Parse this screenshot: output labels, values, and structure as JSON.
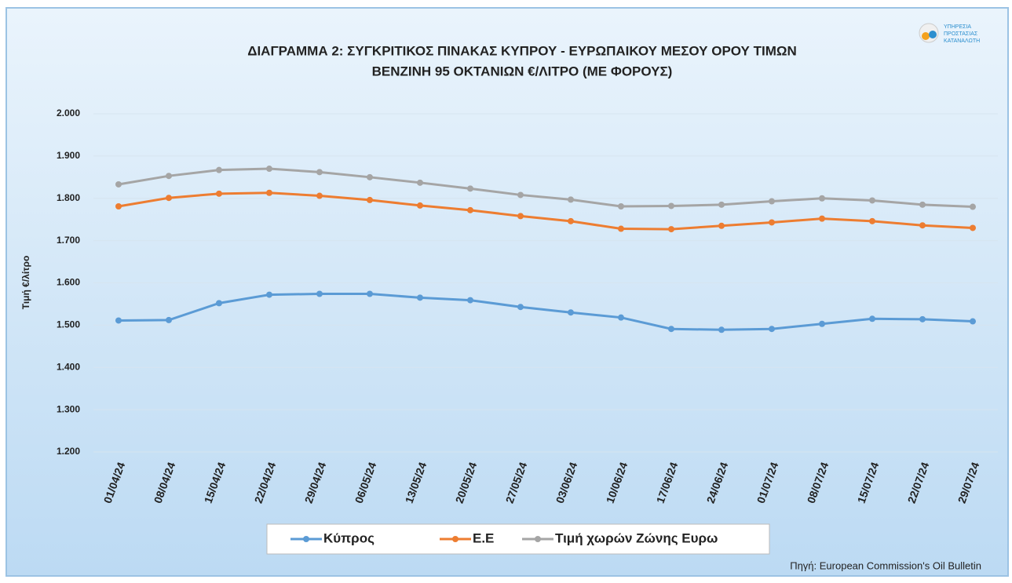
{
  "chart_data": {
    "type": "line",
    "title": [
      "ΔΙΑΓΡΑΜΜΑ 2: ΣΥΓΚΡΙΤΙΚΟΣ ΠΙΝΑΚΑΣ ΚΥΠΡΟΥ - ΕΥΡΩΠΑΙΚΟΥ ΜΕΣΟΥ ΟΡΟΥ ΤΙΜΩΝ",
      "ΒΕΝΖΙΝΗ 95 ΟΚΤΑΝΙΩΝ €/ΛΙΤΡΟ (ΜΕ ΦΟΡΟΥΣ)"
    ],
    "y_label": "Τιμή €/λίτρο",
    "source": "Πηγή: European Commission's Oil Bulletin",
    "logo": [
      "ΥΠΗΡΕΣΙΑ",
      "ΠΡΟΣΤΑΣΙΑΣ",
      "ΚΑΤΑΝΑΛΩΤΗ"
    ],
    "categories": [
      "01/04/24",
      "08/04/24",
      "15/04/24",
      "22/04/24",
      "29/04/24",
      "06/05/24",
      "13/05/24",
      "20/05/24",
      "27/05/24",
      "03/06/24",
      "10/06/24",
      "17/06/24",
      "24/06/24",
      "01/07/24",
      "08/07/24",
      "15/07/24",
      "22/07/24",
      "29/07/24"
    ],
    "series": [
      {
        "name": "Κύπρος",
        "color": "#5b9bd5",
        "values": [
          1.511,
          1.512,
          1.552,
          1.572,
          1.574,
          1.574,
          1.565,
          1.559,
          1.543,
          1.53,
          1.518,
          1.491,
          1.489,
          1.491,
          1.503,
          1.515,
          1.514,
          1.509
        ]
      },
      {
        "name": "Ε.Ε",
        "color": "#ed7d31",
        "values": [
          1.781,
          1.801,
          1.811,
          1.813,
          1.806,
          1.796,
          1.783,
          1.772,
          1.758,
          1.746,
          1.728,
          1.727,
          1.735,
          1.743,
          1.752,
          1.746,
          1.736,
          1.73
        ]
      },
      {
        "name": "Τιμή χωρών Ζώνης Ευρω",
        "color": "#a5a5a5",
        "values": [
          1.833,
          1.853,
          1.867,
          1.87,
          1.862,
          1.85,
          1.837,
          1.823,
          1.808,
          1.797,
          1.781,
          1.782,
          1.785,
          1.793,
          1.8,
          1.795,
          1.785,
          1.78
        ]
      }
    ],
    "ylim": [
      1.2,
      2.0
    ],
    "yticks": [
      {
        "value": 1.2,
        "label": "1.200"
      },
      {
        "value": 1.3,
        "label": "1.300"
      },
      {
        "value": 1.4,
        "label": "1.400"
      },
      {
        "value": 1.5,
        "label": "1.500"
      },
      {
        "value": 1.6,
        "label": "1.600"
      },
      {
        "value": 1.7,
        "label": "1.700"
      },
      {
        "value": 1.8,
        "label": "1.800"
      },
      {
        "value": 1.9,
        "label": "1.900"
      },
      {
        "value": 2.0,
        "label": "2.000"
      }
    ],
    "grid": true,
    "legend": "bottom"
  }
}
